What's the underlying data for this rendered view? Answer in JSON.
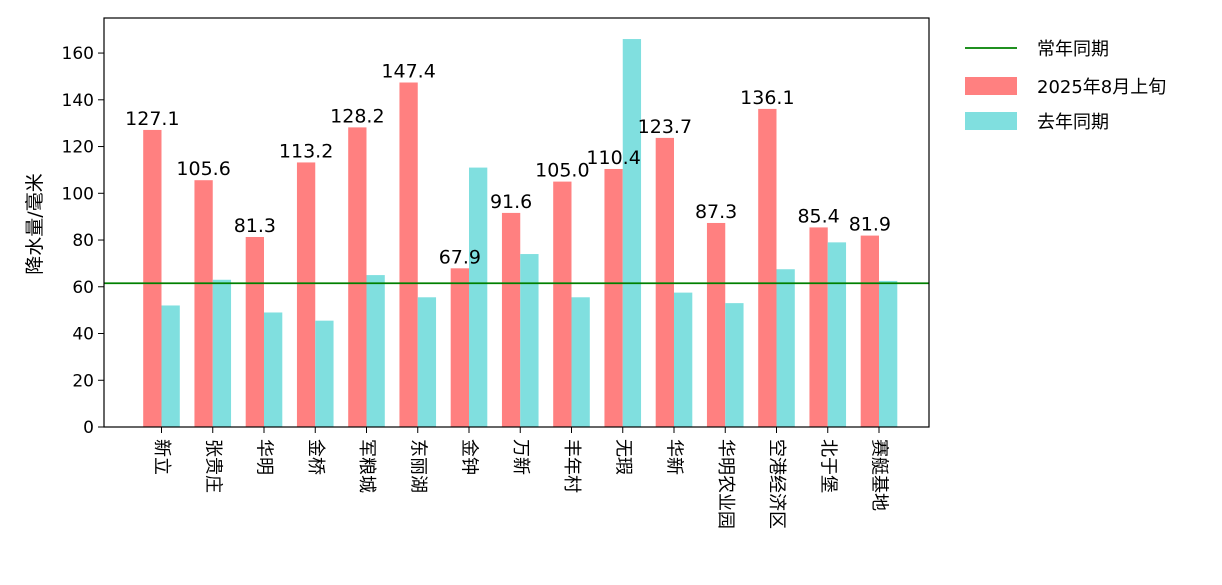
{
  "chart_data": {
    "type": "bar",
    "ylabel": "降水量/毫米",
    "ylim": [
      0,
      175
    ],
    "yticks": [
      0,
      20,
      40,
      60,
      80,
      100,
      120,
      140,
      160
    ],
    "categories": [
      "新立",
      "张贵庄",
      "华明",
      "金桥",
      "军粮城",
      "东丽湖",
      "金钟",
      "万新",
      "丰年村",
      "无瑕",
      "华新",
      "华明农业园",
      "空港经济区",
      "北于堡",
      "赛艇基地"
    ],
    "series": [
      {
        "name": "2025年8月上旬",
        "color": "#ff8080",
        "values": [
          127.1,
          105.6,
          81.3,
          113.2,
          128.2,
          147.4,
          67.9,
          91.6,
          105.0,
          110.4,
          123.7,
          87.3,
          136.1,
          85.4,
          81.9
        ],
        "labels": [
          "127.1",
          "105.6",
          "81.3",
          "113.2",
          "128.2",
          "147.4",
          "67.9",
          "91.6",
          "105.0",
          "110.4",
          "123.7",
          "87.3",
          "136.1",
          "85.4",
          "81.9"
        ]
      },
      {
        "name": "去年同期",
        "color": "#80dfdf",
        "values": [
          52.0,
          63.0,
          49.0,
          45.5,
          65.0,
          55.5,
          111.0,
          74.0,
          55.5,
          166.0,
          57.5,
          53.0,
          67.5,
          79.0,
          62.5
        ]
      }
    ],
    "reference_line": {
      "name": "常年同期",
      "value": 61.5,
      "color": "#008000"
    },
    "legend": {
      "position": "outside-right-top",
      "entries": [
        {
          "name": "常年同期",
          "kind": "line",
          "color": "#008000"
        },
        {
          "name": "2025年8月上旬",
          "kind": "bar",
          "color": "#ff8080"
        },
        {
          "name": "去年同期",
          "kind": "bar",
          "color": "#80dfdf"
        }
      ]
    },
    "grid": false
  }
}
